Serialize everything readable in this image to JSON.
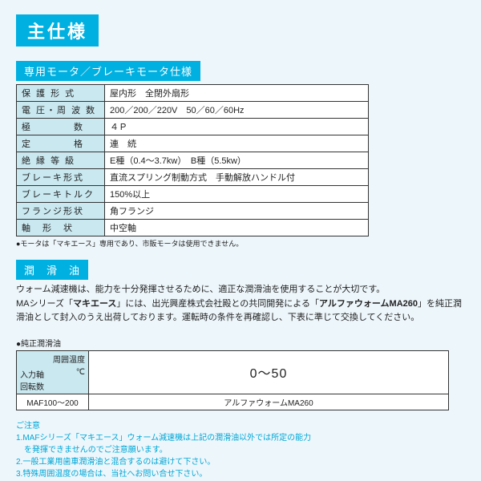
{
  "title": "主仕様",
  "section1": {
    "heading": "専用モータ／ブレーキモータ仕様",
    "rows": [
      {
        "label": "保 護 形 式",
        "value": "屋内形　全閉外扇形"
      },
      {
        "label": "電 圧・周 波 数",
        "value": "200／200／220V　50／60／60Hz"
      },
      {
        "label": "極　　　　数",
        "value": "４Ｐ"
      },
      {
        "label": "定　　　　格",
        "value": "連　続"
      },
      {
        "label": "絶 縁 等 級",
        "value": "E種（0.4～3.7kw）　B種（5.5kw）"
      },
      {
        "label": "ブレーキ形式",
        "value": "直流スプリング制動方式　手動解放ハンドル付"
      },
      {
        "label": "ブレーキトルク",
        "value": "150%以上"
      },
      {
        "label": "フランジ形状",
        "value": "角フランジ"
      },
      {
        "label": "軸　形　状",
        "value": "中空軸"
      }
    ],
    "note": "●モータは「マキエース」専用であり、市販モータは使用できません。"
  },
  "section2": {
    "heading": "潤　滑　油",
    "para_parts": {
      "p1": "ウォーム減速機は、能力を十分発揮させるために、適正な潤滑油を使用することが大切です。",
      "p2a": "MAシリーズ「",
      "p2b": "マキエース",
      "p2c": "」には、出光興産株式会社殿との共同開発による「",
      "p2d": "アルファウォームMA260",
      "p2e": "」を純正潤滑油として封入のうえ出荷しております。運転時の条件を再確認し、下表に準じて交換してください。"
    },
    "oil_label": "●純正潤滑油",
    "oil_table": {
      "hdr_corner_top": "周囲温度",
      "hdr_corner_unit": "℃",
      "hdr_corner_left": "入力軸\n回転数",
      "range": "0～50",
      "row1_label": "MAF100～200",
      "row1_value": "アルファウォームMA260"
    },
    "caution_title": "ご注意",
    "cautions": [
      "1.MAFシリーズ「マキエース」ウォーム減速機は上記の潤滑油以外では所定の能力\n　を発揮できませんのでご注意願います。",
      "2.一般工業用歯車潤滑油と混合するのは避けて下さい。",
      "3.特殊周囲温度の場合は、当社へお問い合せ下さい。"
    ]
  },
  "colors": {
    "accent": "#00b0e0",
    "cell_bg": "#c9e8f0",
    "page_bg": "#edf6fb",
    "caution_text": "#00a7d6"
  }
}
